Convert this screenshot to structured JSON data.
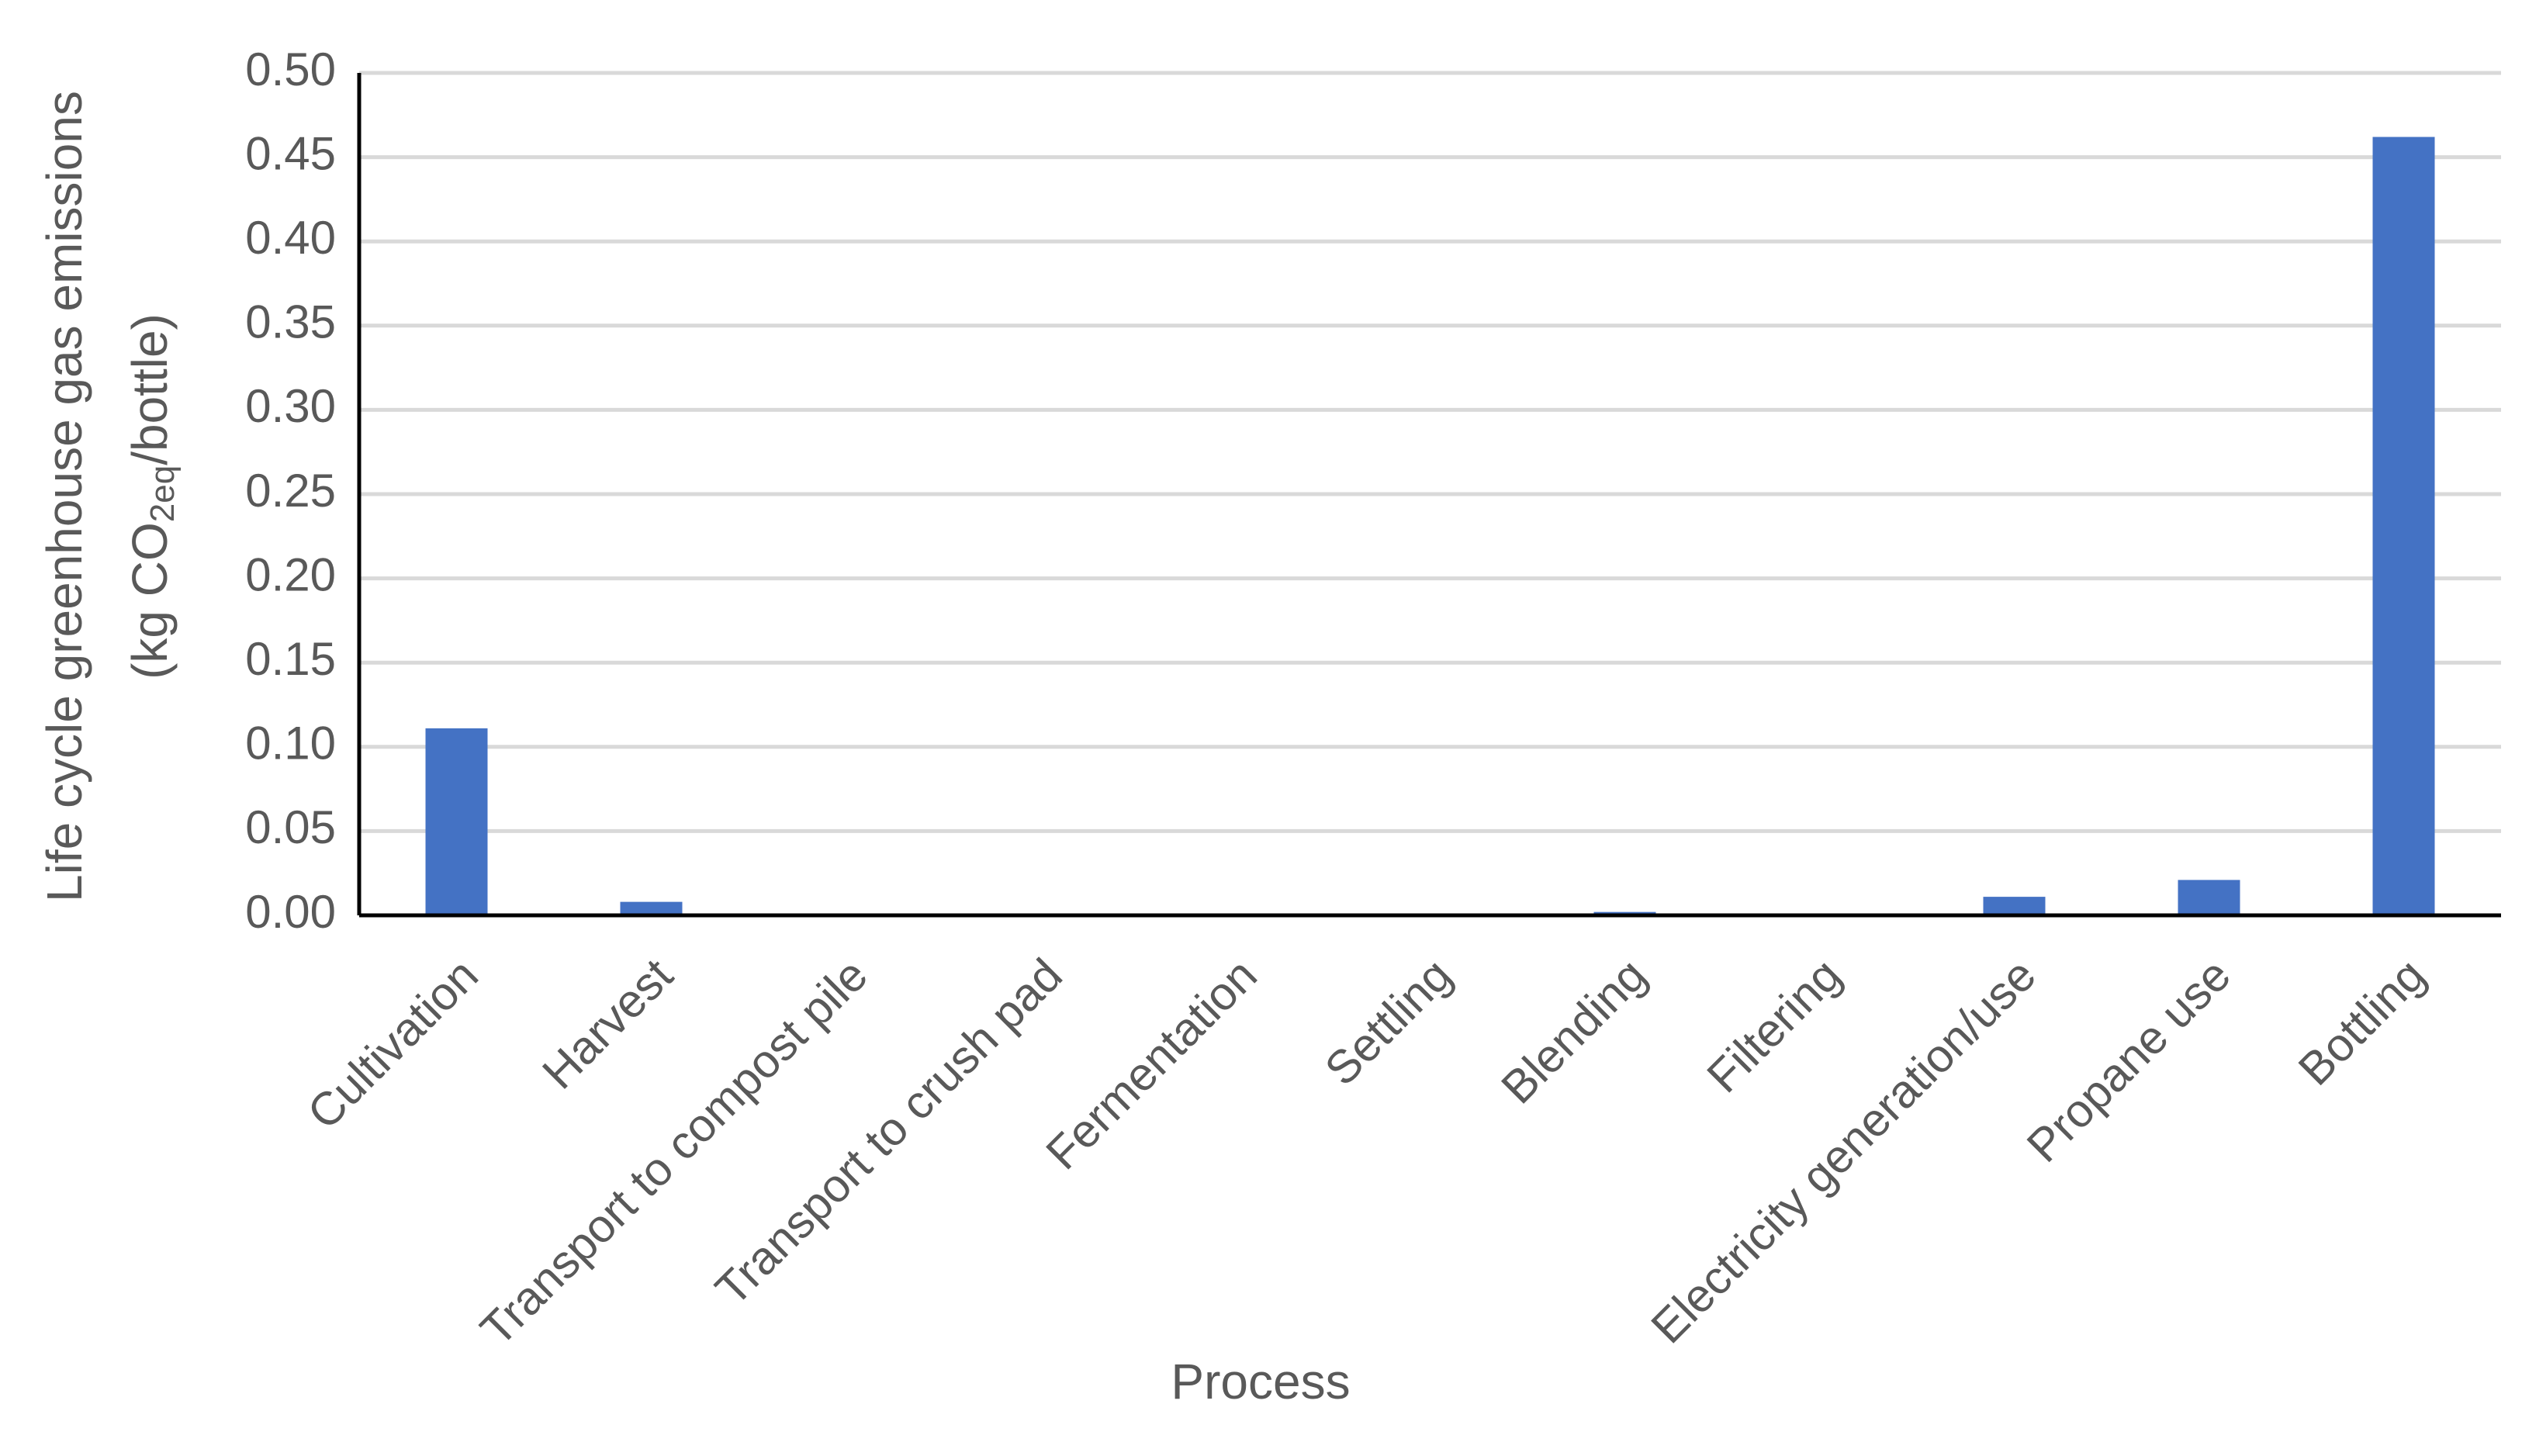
{
  "chart_data": {
    "type": "bar",
    "x_label": "Process",
    "y_label": [
      "Life cycle greenhouse gas emissions",
      "(kg CO",
      "2eq",
      "/bottle)"
    ],
    "categories": [
      "Cultivation",
      "Harvest",
      "Transport to compost pile",
      "Transport to crush pad",
      "Fermentation",
      "Settling",
      "Blending",
      "Filtering",
      "Electricity generation/use",
      "Propane use",
      "Bottling"
    ],
    "values": [
      0.111,
      0.008,
      0,
      0,
      0,
      0,
      0.002,
      0,
      0.011,
      0.021,
      0.462
    ],
    "color": "#4472c4",
    "ylim": [
      0,
      0.5
    ],
    "yticks": [
      {
        "value": 0,
        "label": "0.00"
      },
      {
        "value": 0.05,
        "label": "0.05"
      },
      {
        "value": 0.1,
        "label": "0.10"
      },
      {
        "value": 0.15,
        "label": "0.15"
      },
      {
        "value": 0.2,
        "label": "0.20"
      },
      {
        "value": 0.25,
        "label": "0.25"
      },
      {
        "value": 0.3,
        "label": "0.30"
      },
      {
        "value": 0.35,
        "label": "0.35"
      },
      {
        "value": 0.4,
        "label": "0.40"
      },
      {
        "value": 0.45,
        "label": "0.45"
      },
      {
        "value": 0.5,
        "label": "0.50"
      }
    ],
    "grid": true
  }
}
